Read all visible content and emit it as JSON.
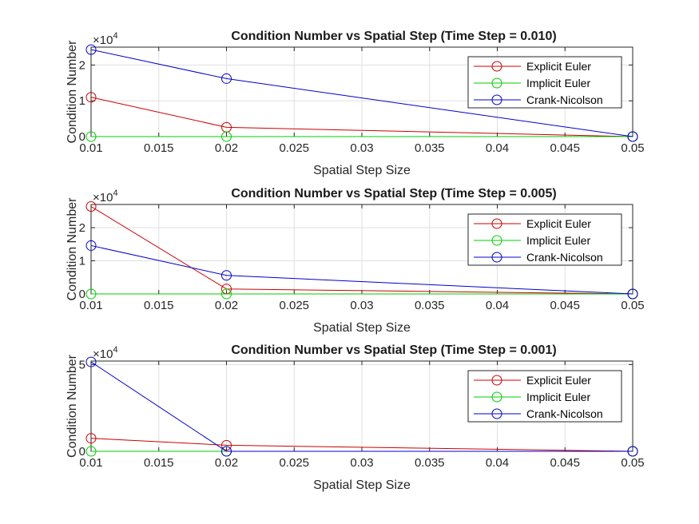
{
  "chart_data": [
    {
      "type": "line",
      "title": "Condition Number vs Spatial Step (Time Step = 0.010)",
      "xlabel": "Spatial Step Size",
      "ylabel": "Condition Number",
      "x": [
        0.01,
        0.02,
        0.05
      ],
      "xlim": [
        0.01,
        0.05
      ],
      "xticks": [
        "0.01",
        "0.015",
        "0.02",
        "0.025",
        "0.03",
        "0.035",
        "0.04",
        "0.045",
        "0.05"
      ],
      "ylim": [
        0,
        2.5
      ],
      "yticks": [
        "0",
        "1",
        "2"
      ],
      "y_exponent_base": "×10",
      "y_exponent_power": "4",
      "grid": true,
      "legend_position": "top-right",
      "series": [
        {
          "name": "Explicit Euler",
          "color": "#cc0000",
          "values": [
            1.1,
            0.26,
            0.0
          ]
        },
        {
          "name": "Implicit Euler",
          "color": "#00cc00",
          "values": [
            0.0,
            0.0,
            0.0
          ]
        },
        {
          "name": "Crank-Nicolson",
          "color": "#0000cc",
          "values": [
            2.43,
            1.62,
            0.0
          ]
        }
      ]
    },
    {
      "type": "line",
      "title": "Condition Number vs Spatial Step (Time Step = 0.005)",
      "xlabel": "Spatial Step Size",
      "ylabel": "Condition Number",
      "x": [
        0.01,
        0.02,
        0.05
      ],
      "xlim": [
        0.01,
        0.05
      ],
      "xticks": [
        "0.01",
        "0.015",
        "0.02",
        "0.025",
        "0.03",
        "0.035",
        "0.04",
        "0.045",
        "0.05"
      ],
      "ylim": [
        0,
        2.7
      ],
      "yticks": [
        "0",
        "1",
        "2"
      ],
      "y_exponent_base": "×10",
      "y_exponent_power": "4",
      "grid": true,
      "legend_position": "top-right",
      "series": [
        {
          "name": "Explicit Euler",
          "color": "#cc0000",
          "values": [
            2.64,
            0.15,
            0.0
          ]
        },
        {
          "name": "Implicit Euler",
          "color": "#00cc00",
          "values": [
            0.0,
            0.0,
            0.0
          ]
        },
        {
          "name": "Crank-Nicolson",
          "color": "#0000cc",
          "values": [
            1.46,
            0.56,
            0.0
          ]
        }
      ]
    },
    {
      "type": "line",
      "title": "Condition Number vs Spatial Step (Time Step = 0.001)",
      "xlabel": "Spatial Step Size",
      "ylabel": "Condition Number",
      "x": [
        0.01,
        0.02,
        0.05
      ],
      "xlim": [
        0.01,
        0.05
      ],
      "xticks": [
        "0.01",
        "0.015",
        "0.02",
        "0.025",
        "0.03",
        "0.035",
        "0.04",
        "0.045",
        "0.05"
      ],
      "ylim": [
        0,
        5.2
      ],
      "yticks": [
        "0",
        "5"
      ],
      "y_exponent_base": "×10",
      "y_exponent_power": "4",
      "grid": true,
      "legend_position": "top-right",
      "series": [
        {
          "name": "Explicit Euler",
          "color": "#cc0000",
          "values": [
            0.75,
            0.35,
            0.0
          ]
        },
        {
          "name": "Implicit Euler",
          "color": "#00cc00",
          "values": [
            0.0,
            0.0,
            0.0
          ]
        },
        {
          "name": "Crank-Nicolson",
          "color": "#0000cc",
          "values": [
            5.15,
            0.0,
            0.0
          ]
        }
      ]
    }
  ]
}
